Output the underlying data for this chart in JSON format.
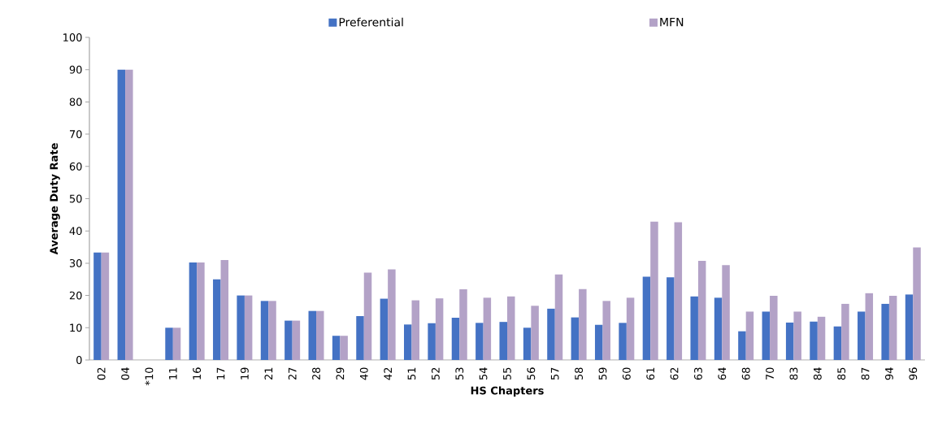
{
  "chart_data": {
    "type": "bar",
    "xlabel": "HS Chapters",
    "ylabel": "Average Duty Rate",
    "categories": [
      "02",
      "04",
      "*10",
      "11",
      "16",
      "17",
      "19",
      "21",
      "27",
      "28",
      "29",
      "40",
      "42",
      "51",
      "52",
      "53",
      "54",
      "55",
      "56",
      "57",
      "58",
      "59",
      "60",
      "61",
      "62",
      "63",
      "64",
      "68",
      "70",
      "83",
      "84",
      "85",
      "87",
      "94",
      "96"
    ],
    "series": [
      {
        "name": "Preferential",
        "color": "#4472c4",
        "values": [
          33.3,
          90,
          0,
          10,
          30.2,
          25,
          20,
          18.3,
          12.2,
          15.2,
          7.5,
          13.6,
          19.0,
          11.0,
          11.4,
          13.1,
          11.5,
          11.8,
          10.0,
          15.9,
          13.2,
          10.9,
          11.5,
          25.8,
          25.6,
          19.7,
          19.3,
          8.9,
          15.0,
          11.6,
          11.9,
          10.4,
          15.0,
          17.4,
          20.3
        ]
      },
      {
        "name": "MFN",
        "color": "#b3a2c7",
        "values": [
          33.3,
          90,
          0,
          10,
          30.2,
          31,
          20,
          18.3,
          12.2,
          15.2,
          7.5,
          27.1,
          28.1,
          18.5,
          19.1,
          21.9,
          19.3,
          19.7,
          16.8,
          26.5,
          22.0,
          18.3,
          19.3,
          42.9,
          42.7,
          30.7,
          29.4,
          15.0,
          19.9,
          15.0,
          13.4,
          17.4,
          20.7,
          19.9,
          34.9
        ]
      }
    ],
    "ylim": [
      0,
      100
    ],
    "yticks": [
      0,
      10,
      20,
      30,
      40,
      50,
      60,
      70,
      80,
      90,
      100
    ],
    "grid": false,
    "legend": "top"
  }
}
